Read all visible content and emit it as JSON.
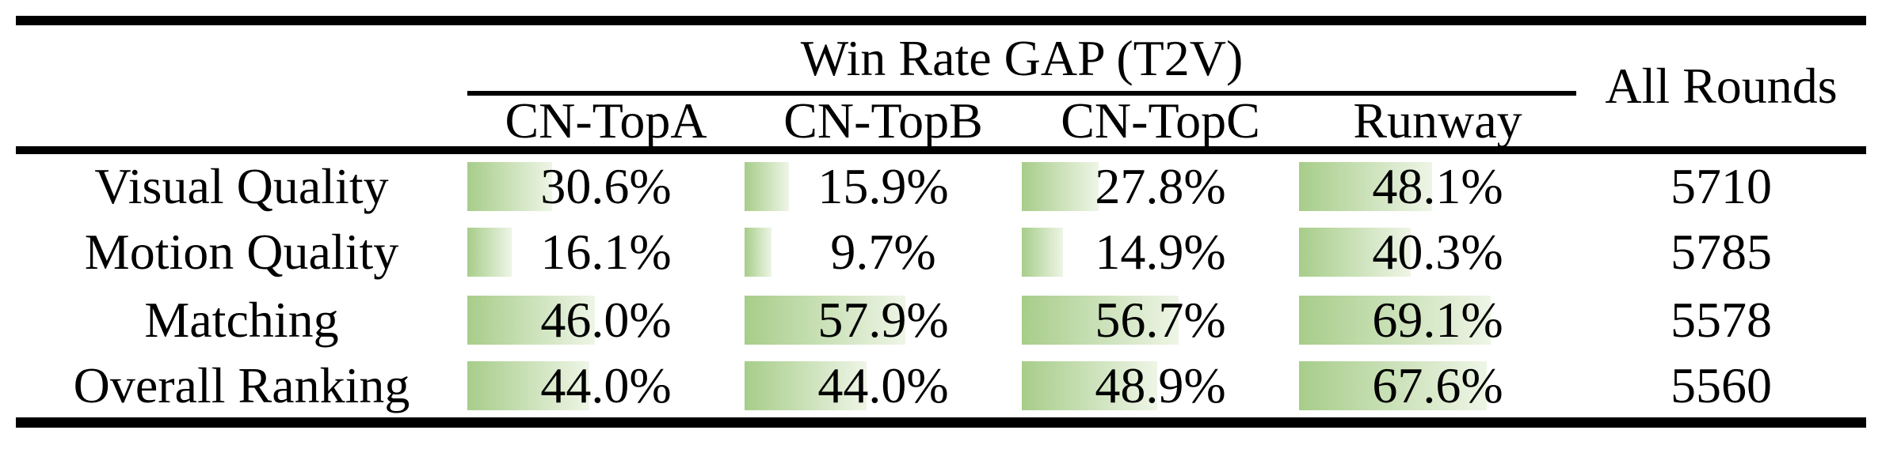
{
  "table": {
    "group_header": "Win Rate GAP (T2V)",
    "all_rounds_header": "All Rounds",
    "columns": [
      "CN-TopA",
      "CN-TopB",
      "CN-TopC",
      "Runway"
    ],
    "rows": [
      {
        "label": "Visual Quality",
        "cells": [
          {
            "text": "30.6%",
            "pct": 30.6
          },
          {
            "text": "15.9%",
            "pct": 15.9
          },
          {
            "text": "27.8%",
            "pct": 27.8
          },
          {
            "text": "48.1%",
            "pct": 48.1
          }
        ],
        "all_rounds": "5710"
      },
      {
        "label": "Motion Quality",
        "cells": [
          {
            "text": "16.1%",
            "pct": 16.1
          },
          {
            "text": "9.7%",
            "pct": 9.7
          },
          {
            "text": "14.9%",
            "pct": 14.9
          },
          {
            "text": "40.3%",
            "pct": 40.3
          }
        ],
        "all_rounds": "5785"
      },
      {
        "label": "Matching",
        "cells": [
          {
            "text": "46.0%",
            "pct": 46.0
          },
          {
            "text": "57.9%",
            "pct": 57.9
          },
          {
            "text": "56.7%",
            "pct": 56.7
          },
          {
            "text": "69.1%",
            "pct": 69.1
          }
        ],
        "all_rounds": "5578"
      },
      {
        "label": "Overall Ranking",
        "cells": [
          {
            "text": "44.0%",
            "pct": 44.0
          },
          {
            "text": "44.0%",
            "pct": 44.0
          },
          {
            "text": "48.9%",
            "pct": 48.9
          },
          {
            "text": "67.6%",
            "pct": 67.6
          }
        ],
        "all_rounds": "5560"
      }
    ]
  },
  "colors": {
    "bar_green": "#a7cd8a",
    "bar_fade": "#eef5e6",
    "rule": "#000000"
  },
  "chart_data": {
    "type": "table",
    "title": "Win Rate GAP (T2V)",
    "categories": [
      "Visual Quality",
      "Motion Quality",
      "Matching",
      "Overall Ranking"
    ],
    "series": [
      {
        "name": "CN-TopA",
        "values": [
          30.6,
          16.1,
          46.0,
          44.0
        ]
      },
      {
        "name": "CN-TopB",
        "values": [
          15.9,
          9.7,
          57.9,
          44.0
        ]
      },
      {
        "name": "CN-TopC",
        "values": [
          27.8,
          14.9,
          56.7,
          48.9
        ]
      },
      {
        "name": "Runway",
        "values": [
          48.1,
          40.3,
          69.1,
          67.6
        ]
      }
    ],
    "all_rounds": [
      5710,
      5785,
      5578,
      5560
    ],
    "unit": "%",
    "bar_scale": [
      0,
      100
    ],
    "layout": "in-cell data bars, left-aligned, length proportional to percentage"
  }
}
